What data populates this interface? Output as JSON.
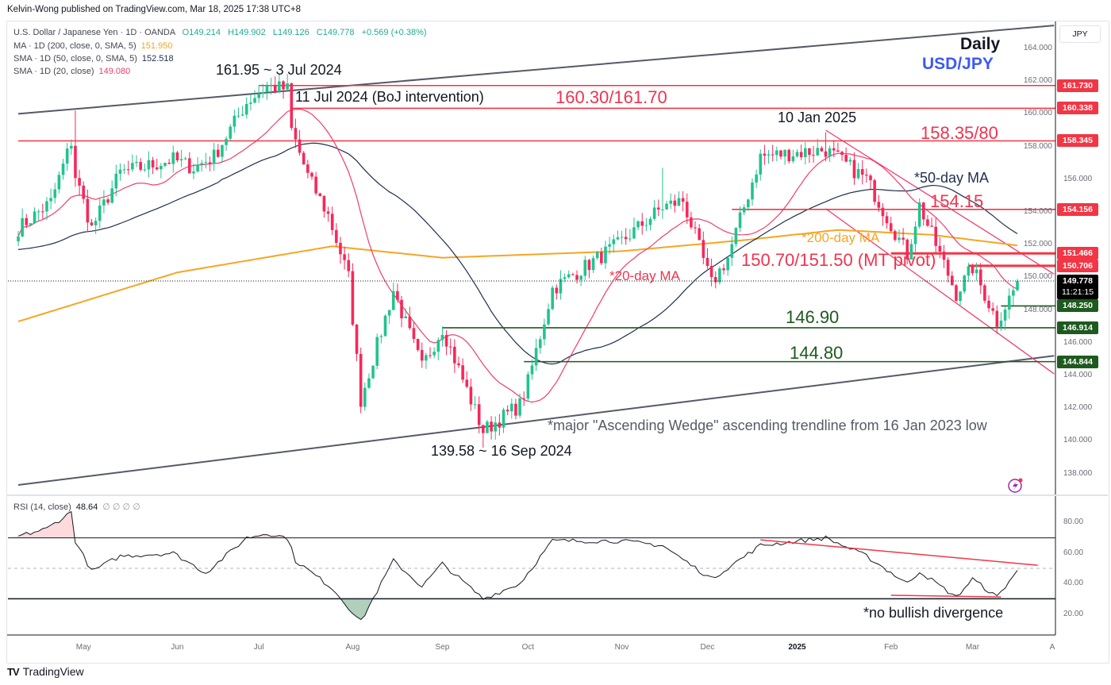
{
  "publisher": "Kelvin-Wong published on TradingView.com, Mar 18, 2025 17:38 UTC+8",
  "legend": {
    "symbol": "U.S. Dollar / Japanese Yen · 1D · OANDA",
    "ohlc": {
      "o": "O149.214",
      "h": "H149.902",
      "l": "L149.126",
      "c": "C149.778",
      "chg": "+0.569 (+0.38%)"
    },
    "ma200": {
      "label": "MA · 1D (200, close, 0, SMA, 5)",
      "value": "151.950"
    },
    "sma50": {
      "label": "SMA · 1D (50, close, 0, SMA, 5)",
      "value": "152.518"
    },
    "sma20": {
      "label": "SMA · 1D (20, close)",
      "value": "149.080"
    },
    "rsi": {
      "label": "RSI (14, close)",
      "value": "48.64",
      "extras": "∅ ∅ ∅ ∅"
    }
  },
  "currency": "JPY",
  "footer": "TradingView",
  "colors": {
    "up": "#22c38e",
    "down": "#f7285a",
    "ma20": "#f23c6e",
    "ma50": "#1f2f4d",
    "ma200": "#f5a623",
    "resist": "#f23645",
    "support": "#1e5a1e",
    "annRed": "#f0334f",
    "annGreen": "#1e5a1e",
    "title": "#3d5af1"
  },
  "annotations": {
    "daily": "Daily",
    "pair": "USD/JPY",
    "high": "161.95 ~ 3 Jul 2024",
    "boj": "11 Jul 2024 (BoJ intervention)",
    "r1": "160.30/161.70",
    "jan": "10 Jan 2025",
    "r2": "158.35/80",
    "ma50": "*50-day MA",
    "r3": "154.15",
    "ma200": "*200-day MA",
    "pivot": "150.70/151.50 (MT pivot)",
    "ma20": "*20-day MA",
    "s1": "146.90",
    "s2": "144.80",
    "wedge": "*major \"Ascending Wedge\" ascending trendline from 16 Jan 2023 low",
    "low": "139.58 ~ 16 Sep 2024",
    "divergence": "*no bullish divergence"
  },
  "chart_data": {
    "type": "candlestick",
    "title": "USD/JPY Daily",
    "start_date": "2024-04-09",
    "end_date": "2025-03-18",
    "price_ticks": [
      138,
      140,
      142,
      144,
      146,
      148,
      150,
      152,
      154,
      156,
      158,
      160,
      162,
      164
    ],
    "ylim": [
      136.8,
      166
    ],
    "close_path": [
      [
        "2024-04-09",
        153.0
      ],
      [
        "2024-04-19",
        154.6
      ],
      [
        "2024-04-26",
        158.3
      ],
      [
        "2024-04-29",
        156.2
      ],
      [
        "2024-05-03",
        153.0
      ],
      [
        "2024-05-14",
        156.4
      ],
      [
        "2024-05-31",
        157.2
      ],
      [
        "2024-06-07",
        156.7
      ],
      [
        "2024-06-14",
        157.4
      ],
      [
        "2024-06-26",
        160.7
      ],
      [
        "2024-07-03",
        161.7
      ],
      [
        "2024-07-10",
        161.5
      ],
      [
        "2024-07-11",
        159.0
      ],
      [
        "2024-07-17",
        156.2
      ],
      [
        "2024-07-24",
        153.8
      ],
      [
        "2024-07-31",
        150.0
      ],
      [
        "2024-08-05",
        142.5
      ],
      [
        "2024-08-15",
        149.2
      ],
      [
        "2024-08-26",
        144.5
      ],
      [
        "2024-09-02",
        146.9
      ],
      [
        "2024-09-16",
        140.6
      ],
      [
        "2024-09-27",
        142.2
      ],
      [
        "2024-10-01",
        143.6
      ],
      [
        "2024-10-09",
        149.3
      ],
      [
        "2024-10-31",
        152.0
      ],
      [
        "2024-11-15",
        154.3
      ],
      [
        "2024-11-22",
        154.7
      ],
      [
        "2024-12-03",
        149.6
      ],
      [
        "2024-12-09",
        151.2
      ],
      [
        "2024-12-19",
        157.4
      ],
      [
        "2025-01-10",
        157.8
      ],
      [
        "2025-01-24",
        156.0
      ],
      [
        "2025-02-07",
        151.4
      ],
      [
        "2025-02-12",
        154.4
      ],
      [
        "2025-02-25",
        149.0
      ],
      [
        "2025-03-03",
        150.6
      ],
      [
        "2025-03-11",
        147.3
      ],
      [
        "2025-03-17",
        149.21
      ],
      [
        "2025-03-18",
        149.778
      ]
    ],
    "last_bar": {
      "open": 149.214,
      "high": 149.902,
      "low": 149.126,
      "close": 149.778
    },
    "extreme_wicks": [
      [
        "2024-04-29",
        160.2
      ],
      [
        "2024-07-03",
        161.95
      ],
      [
        "2024-08-05",
        141.7
      ],
      [
        "2024-09-16",
        139.58
      ],
      [
        "2024-11-15",
        156.7
      ],
      [
        "2025-01-10",
        158.87
      ],
      [
        "2025-03-11",
        146.54
      ]
    ],
    "ma200_path": [
      [
        "2024-04-09",
        147.3
      ],
      [
        "2024-06-01",
        150.3
      ],
      [
        "2024-07-25",
        151.9
      ],
      [
        "2024-09-01",
        151.2
      ],
      [
        "2024-11-01",
        151.6
      ],
      [
        "2024-12-15",
        152.3
      ],
      [
        "2025-01-15",
        152.9
      ],
      [
        "2025-02-15",
        152.6
      ],
      [
        "2025-03-18",
        151.95
      ]
    ],
    "levels": [
      {
        "price": 161.73,
        "from": "2024-07-01",
        "type": "resist",
        "label": "161.730"
      },
      {
        "price": 160.338,
        "from": "2024-07-11",
        "type": "resist",
        "label": "160.338"
      },
      {
        "price": 158.345,
        "from": "2024-04-09",
        "type": "resist",
        "label": "158.345"
      },
      {
        "price": 154.156,
        "from": "2024-12-10",
        "type": "resist",
        "label": "154.156"
      },
      {
        "price": 151.466,
        "from": "2025-02-03",
        "type": "resist",
        "label": "151.466"
      },
      {
        "price": 150.706,
        "from": "2025-02-28",
        "type": "resist",
        "label": "150.706"
      },
      {
        "price": 148.25,
        "from": "2025-03-12",
        "type": "support",
        "label": "148.250"
      },
      {
        "price": 146.914,
        "from": "2024-09-02",
        "type": "support",
        "label": "146.914"
      },
      {
        "price": 144.844,
        "from": "2024-09-30",
        "type": "support",
        "label": "144.844"
      }
    ],
    "current": {
      "price": 149.778,
      "label": "149.778",
      "countdown": "11:21:15"
    },
    "trendlines": [
      {
        "name": "wedge-upper",
        "p1": [
          "2024-04-09",
          160.0
        ],
        "p2": [
          "2025-03-31",
          165.4
        ],
        "color": "#555a66"
      },
      {
        "name": "wedge-lower",
        "p1": [
          "2024-04-09",
          137.3
        ],
        "p2": [
          "2025-03-31",
          145.2
        ],
        "color": "#555a66"
      },
      {
        "name": "channel-upper",
        "p1": [
          "2025-01-10",
          159.0
        ],
        "p2": [
          "2025-03-31",
          150.2
        ],
        "color": "#f23c6e"
      },
      {
        "name": "channel-lower",
        "p1": [
          "2025-01-10",
          154.2
        ],
        "p2": [
          "2025-03-31",
          144.1
        ],
        "color": "#f23c6e"
      }
    ],
    "months": [
      [
        "2024-05-01",
        "May"
      ],
      [
        "2024-06-03",
        "Jun"
      ],
      [
        "2024-07-01",
        "Jul"
      ],
      [
        "2024-08-01",
        "Aug"
      ],
      [
        "2024-09-02",
        "Sep"
      ],
      [
        "2024-10-01",
        "Oct"
      ],
      [
        "2024-11-01",
        "Nov"
      ],
      [
        "2024-12-02",
        "Dec"
      ],
      [
        "2025-01-01",
        "2025"
      ],
      [
        "2025-02-03",
        "Feb"
      ],
      [
        "2025-03-03",
        "Mar"
      ],
      [
        "2025-04-01",
        "A"
      ]
    ],
    "rsi": {
      "ticks": [
        20,
        40,
        60,
        80
      ],
      "bands": [
        30,
        50,
        70
      ],
      "path": [
        [
          "2024-04-09",
          71
        ],
        [
          "2024-04-18",
          76
        ],
        [
          "2024-04-26",
          87
        ],
        [
          "2024-04-29",
          68
        ],
        [
          "2024-05-03",
          48
        ],
        [
          "2024-05-14",
          58
        ],
        [
          "2024-05-31",
          60
        ],
        [
          "2024-06-12",
          47
        ],
        [
          "2024-06-26",
          70
        ],
        [
          "2024-07-03",
          73
        ],
        [
          "2024-07-10",
          70
        ],
        [
          "2024-07-12",
          55
        ],
        [
          "2024-07-25",
          37
        ],
        [
          "2024-08-05",
          15
        ],
        [
          "2024-08-15",
          55
        ],
        [
          "2024-08-26",
          38
        ],
        [
          "2024-09-02",
          53
        ],
        [
          "2024-09-16",
          30
        ],
        [
          "2024-09-27",
          40
        ],
        [
          "2024-10-09",
          68
        ],
        [
          "2024-10-31",
          68
        ],
        [
          "2024-11-15",
          65
        ],
        [
          "2024-12-03",
          43
        ],
        [
          "2024-12-19",
          65
        ],
        [
          "2025-01-10",
          70
        ],
        [
          "2025-01-24",
          58
        ],
        [
          "2025-02-07",
          40
        ],
        [
          "2025-02-12",
          48
        ],
        [
          "2025-02-25",
          31
        ],
        [
          "2025-03-03",
          43
        ],
        [
          "2025-03-11",
          31
        ],
        [
          "2025-03-18",
          48.64
        ]
      ],
      "trendlines": [
        {
          "p1": [
            "2024-12-19",
            68.7
          ],
          "p2": [
            "2025-03-25",
            52
          ],
          "color": "#f23645"
        },
        {
          "p1": [
            "2025-02-03",
            32.3
          ],
          "p2": [
            "2025-03-12",
            31.2
          ],
          "color": "#f23645"
        }
      ]
    }
  }
}
